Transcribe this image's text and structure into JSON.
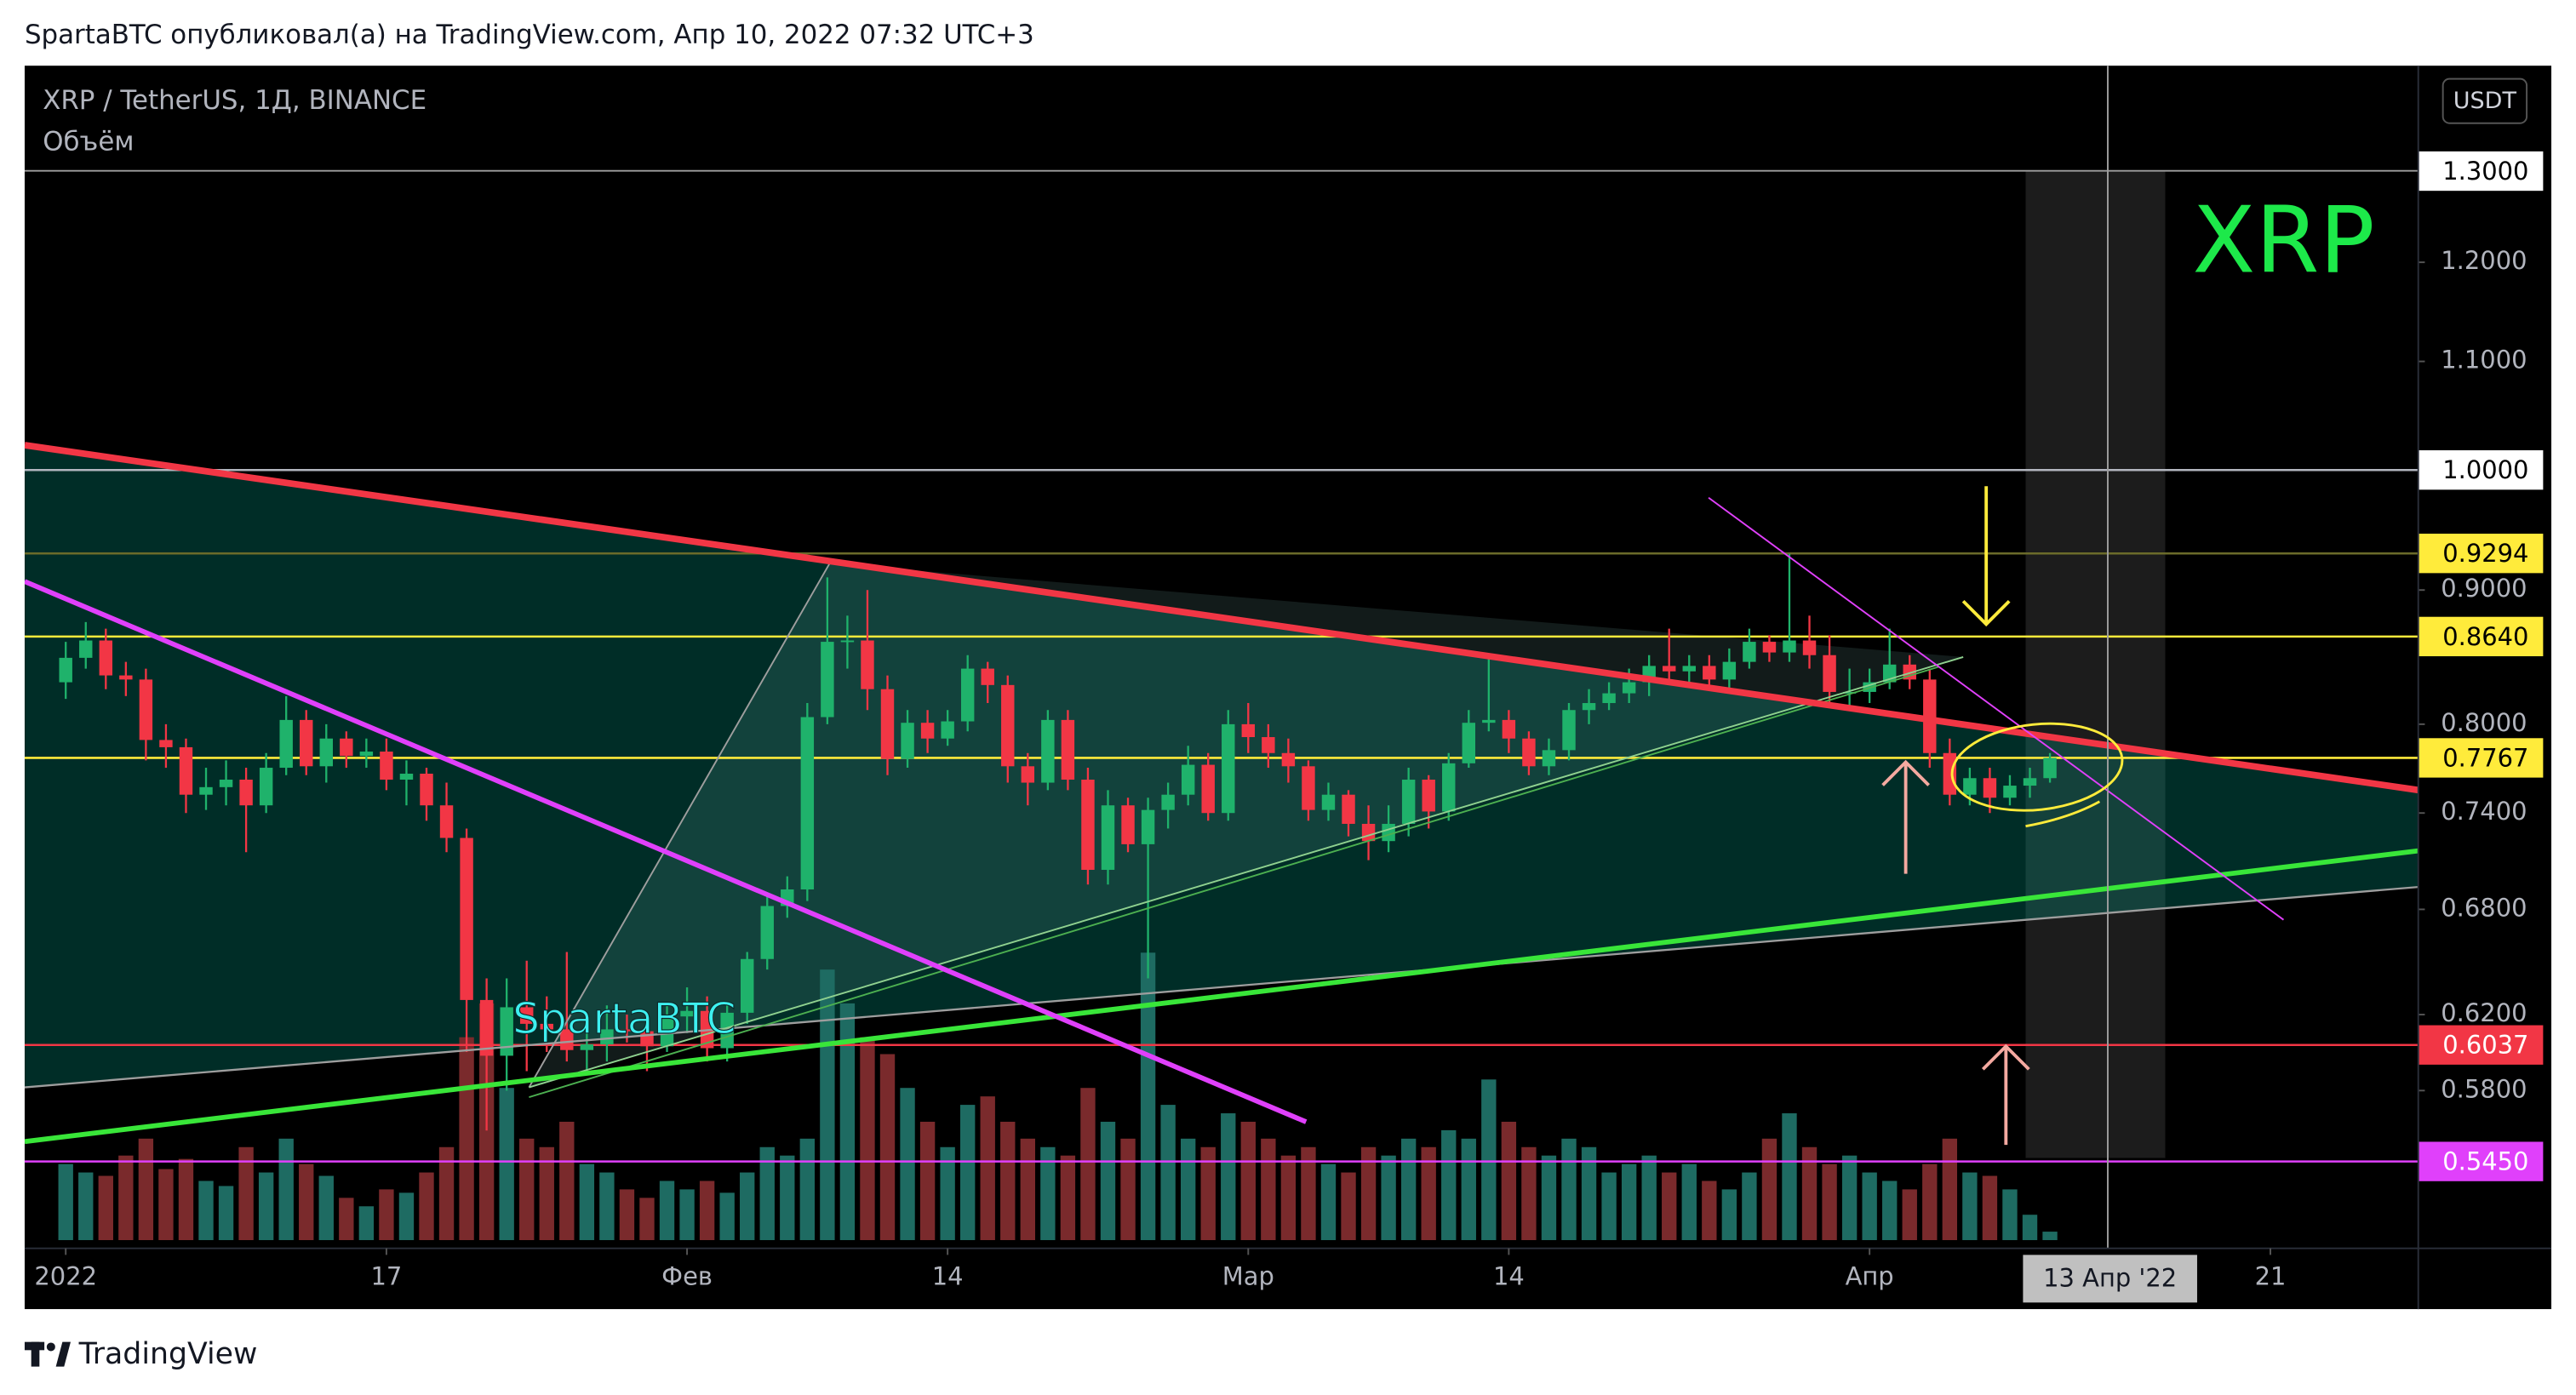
{
  "header": {
    "text": "SpartaBTC опубликовал(а) на TradingView.com, Апр 10, 2022 07:32 UTC+3"
  },
  "footer": {
    "brand": "TradingView"
  },
  "chart_data": {
    "type": "candlestick",
    "symbol": "XRP / TetherUS, 1Д, BINANCE",
    "volume_label": "Объём",
    "currency": "USDT",
    "log_scale": true,
    "ylim": [
      0.505,
      1.426
    ],
    "up_color": "#1fb26b",
    "down_color": "#f23645",
    "volume_up_color": "#1e6b62",
    "volume_down_color": "#7a2a2c",
    "x": [
      "2022-01-01",
      "2022-01-02",
      "2022-01-03",
      "2022-01-04",
      "2022-01-05",
      "2022-01-06",
      "2022-01-07",
      "2022-01-08",
      "2022-01-09",
      "2022-01-10",
      "2022-01-11",
      "2022-01-12",
      "2022-01-13",
      "2022-01-14",
      "2022-01-15",
      "2022-01-16",
      "2022-01-17",
      "2022-01-18",
      "2022-01-19",
      "2022-01-20",
      "2022-01-21",
      "2022-01-22",
      "2022-01-23",
      "2022-01-24",
      "2022-01-25",
      "2022-01-26",
      "2022-01-27",
      "2022-01-28",
      "2022-01-29",
      "2022-01-30",
      "2022-01-31",
      "2022-02-01",
      "2022-02-02",
      "2022-02-03",
      "2022-02-04",
      "2022-02-05",
      "2022-02-06",
      "2022-02-07",
      "2022-02-08",
      "2022-02-09",
      "2022-02-10",
      "2022-02-11",
      "2022-02-12",
      "2022-02-13",
      "2022-02-14",
      "2022-02-15",
      "2022-02-16",
      "2022-02-17",
      "2022-02-18",
      "2022-02-19",
      "2022-02-20",
      "2022-02-21",
      "2022-02-22",
      "2022-02-23",
      "2022-02-24",
      "2022-02-25",
      "2022-02-26",
      "2022-02-27",
      "2022-02-28",
      "2022-03-01",
      "2022-03-02",
      "2022-03-03",
      "2022-03-04",
      "2022-03-05",
      "2022-03-06",
      "2022-03-07",
      "2022-03-08",
      "2022-03-09",
      "2022-03-10",
      "2022-03-11",
      "2022-03-12",
      "2022-03-13",
      "2022-03-14",
      "2022-03-15",
      "2022-03-16",
      "2022-03-17",
      "2022-03-18",
      "2022-03-19",
      "2022-03-20",
      "2022-03-21",
      "2022-03-22",
      "2022-03-23",
      "2022-03-24",
      "2022-03-25",
      "2022-03-26",
      "2022-03-27",
      "2022-03-28",
      "2022-03-29",
      "2022-03-30",
      "2022-03-31",
      "2022-04-01",
      "2022-04-02",
      "2022-04-03",
      "2022-04-04",
      "2022-04-05",
      "2022-04-06",
      "2022-04-07",
      "2022-04-08",
      "2022-04-09",
      "2022-04-10"
    ],
    "open": [
      0.83,
      0.848,
      0.861,
      0.835,
      0.832,
      0.789,
      0.784,
      0.752,
      0.757,
      0.762,
      0.745,
      0.77,
      0.803,
      0.771,
      0.79,
      0.778,
      0.781,
      0.762,
      0.766,
      0.745,
      0.724,
      0.628,
      0.598,
      0.624,
      0.615,
      0.612,
      0.601,
      0.604,
      0.612,
      0.611,
      0.603,
      0.619,
      0.622,
      0.602,
      0.621,
      0.651,
      0.682,
      0.692,
      0.805,
      0.86,
      0.861,
      0.825,
      0.776,
      0.801,
      0.79,
      0.802,
      0.84,
      0.828,
      0.771,
      0.76,
      0.803,
      0.762,
      0.704,
      0.745,
      0.72,
      0.742,
      0.752,
      0.772,
      0.74,
      0.8,
      0.791,
      0.78,
      0.771,
      0.742,
      0.752,
      0.733,
      0.722,
      0.733,
      0.762,
      0.741,
      0.773,
      0.801,
      0.803,
      0.79,
      0.771,
      0.782,
      0.81,
      0.815,
      0.822,
      0.83,
      0.842,
      0.838,
      0.842,
      0.832,
      0.845,
      0.86,
      0.852,
      0.861,
      0.85,
      0.823,
      0.823,
      0.83,
      0.843,
      0.832,
      0.78,
      0.752,
      0.763,
      0.75,
      0.758,
      0.763
    ],
    "high": [
      0.86,
      0.875,
      0.87,
      0.845,
      0.84,
      0.8,
      0.79,
      0.77,
      0.775,
      0.77,
      0.78,
      0.82,
      0.81,
      0.8,
      0.795,
      0.79,
      0.79,
      0.775,
      0.77,
      0.76,
      0.73,
      0.64,
      0.64,
      0.65,
      0.63,
      0.655,
      0.62,
      0.625,
      0.62,
      0.62,
      0.625,
      0.635,
      0.63,
      0.625,
      0.655,
      0.69,
      0.7,
      0.815,
      0.91,
      0.88,
      0.9,
      0.835,
      0.81,
      0.81,
      0.81,
      0.85,
      0.845,
      0.835,
      0.78,
      0.81,
      0.81,
      0.77,
      0.755,
      0.75,
      0.75,
      0.76,
      0.785,
      0.78,
      0.81,
      0.815,
      0.8,
      0.79,
      0.775,
      0.76,
      0.755,
      0.745,
      0.745,
      0.77,
      0.765,
      0.78,
      0.81,
      0.85,
      0.81,
      0.795,
      0.79,
      0.815,
      0.825,
      0.83,
      0.84,
      0.85,
      0.87,
      0.85,
      0.85,
      0.855,
      0.87,
      0.865,
      0.929,
      0.88,
      0.865,
      0.84,
      0.84,
      0.87,
      0.85,
      0.84,
      0.79,
      0.77,
      0.77,
      0.765,
      0.77,
      0.78
    ],
    "low": [
      0.818,
      0.84,
      0.825,
      0.82,
      0.775,
      0.77,
      0.74,
      0.742,
      0.745,
      0.715,
      0.74,
      0.765,
      0.765,
      0.76,
      0.77,
      0.77,
      0.755,
      0.745,
      0.735,
      0.715,
      0.6,
      0.56,
      0.58,
      0.59,
      0.6,
      0.595,
      0.59,
      0.595,
      0.605,
      0.59,
      0.6,
      0.61,
      0.595,
      0.595,
      0.615,
      0.645,
      0.675,
      0.685,
      0.8,
      0.84,
      0.81,
      0.765,
      0.77,
      0.78,
      0.785,
      0.795,
      0.815,
      0.76,
      0.745,
      0.755,
      0.755,
      0.695,
      0.695,
      0.715,
      0.64,
      0.73,
      0.745,
      0.735,
      0.735,
      0.78,
      0.77,
      0.76,
      0.735,
      0.735,
      0.725,
      0.71,
      0.715,
      0.725,
      0.73,
      0.735,
      0.77,
      0.795,
      0.78,
      0.765,
      0.765,
      0.775,
      0.8,
      0.81,
      0.815,
      0.82,
      0.83,
      0.83,
      0.825,
      0.825,
      0.84,
      0.845,
      0.845,
      0.84,
      0.815,
      0.81,
      0.815,
      0.825,
      0.825,
      0.77,
      0.745,
      0.745,
      0.74,
      0.745,
      0.75,
      0.76
    ],
    "close": [
      0.848,
      0.861,
      0.835,
      0.832,
      0.789,
      0.784,
      0.752,
      0.757,
      0.762,
      0.745,
      0.77,
      0.803,
      0.771,
      0.79,
      0.778,
      0.781,
      0.762,
      0.766,
      0.745,
      0.724,
      0.628,
      0.598,
      0.624,
      0.615,
      0.612,
      0.601,
      0.604,
      0.612,
      0.611,
      0.603,
      0.619,
      0.622,
      0.602,
      0.621,
      0.651,
      0.682,
      0.692,
      0.805,
      0.86,
      0.861,
      0.825,
      0.776,
      0.801,
      0.79,
      0.802,
      0.84,
      0.828,
      0.771,
      0.76,
      0.803,
      0.762,
      0.704,
      0.745,
      0.72,
      0.742,
      0.752,
      0.772,
      0.74,
      0.8,
      0.791,
      0.78,
      0.771,
      0.742,
      0.752,
      0.733,
      0.722,
      0.733,
      0.762,
      0.741,
      0.773,
      0.801,
      0.803,
      0.79,
      0.771,
      0.782,
      0.81,
      0.815,
      0.822,
      0.83,
      0.842,
      0.838,
      0.842,
      0.832,
      0.845,
      0.86,
      0.852,
      0.861,
      0.85,
      0.823,
      0.823,
      0.83,
      0.843,
      0.832,
      0.78,
      0.752,
      0.763,
      0.75,
      0.758,
      0.763,
      0.7767
    ],
    "volume": [
      45,
      40,
      38,
      50,
      60,
      42,
      48,
      35,
      32,
      55,
      40,
      60,
      45,
      38,
      25,
      20,
      30,
      28,
      40,
      55,
      120,
      140,
      90,
      60,
      55,
      70,
      45,
      40,
      30,
      25,
      35,
      30,
      35,
      28,
      40,
      55,
      50,
      60,
      160,
      140,
      120,
      110,
      90,
      70,
      55,
      80,
      85,
      70,
      60,
      55,
      50,
      90,
      70,
      60,
      170,
      80,
      60,
      55,
      75,
      70,
      60,
      50,
      55,
      45,
      40,
      55,
      50,
      60,
      55,
      65,
      60,
      95,
      70,
      55,
      50,
      60,
      55,
      40,
      45,
      50,
      40,
      45,
      35,
      30,
      40,
      60,
      75,
      55,
      45,
      50,
      40,
      35,
      30,
      45,
      60,
      40,
      38,
      30,
      15,
      5
    ],
    "yticks": [
      {
        "value": 1.2,
        "label": "1.2000"
      },
      {
        "value": 1.1,
        "label": "1.1000"
      },
      {
        "value": 0.9,
        "label": "0.9000"
      },
      {
        "value": 0.8,
        "label": "0.8000"
      },
      {
        "value": 0.74,
        "label": "0.7400"
      },
      {
        "value": 0.68,
        "label": "0.6800"
      },
      {
        "value": 0.62,
        "label": "0.6200"
      },
      {
        "value": 0.58,
        "label": "0.5800"
      }
    ],
    "xticks": [
      {
        "value": "2022-01-01",
        "label": "2022"
      },
      {
        "value": "2022-01-17",
        "label": "17"
      },
      {
        "value": "2022-02-01",
        "label": "Фев"
      },
      {
        "value": "2022-02-14",
        "label": "14"
      },
      {
        "value": "2022-03-01",
        "label": "Мар"
      },
      {
        "value": "2022-03-14",
        "label": "14"
      },
      {
        "value": "2022-04-01",
        "label": "Апр"
      },
      {
        "value": "2022-04-21",
        "label": "21"
      }
    ],
    "levels": [
      {
        "value": 1.0,
        "label": "1.0000",
        "color": "#b2b5be",
        "box": "#ffffff",
        "text": "#000000"
      },
      {
        "value": 0.9294,
        "label": "0.9294",
        "color": "#6b6b2a",
        "box": "#ffeb3b",
        "text": "#000000"
      },
      {
        "value": 0.864,
        "label": "0.8640",
        "color": "#ffeb3b",
        "box": "#ffeb3b",
        "text": "#000000"
      },
      {
        "value": 0.7767,
        "label": "0.7767",
        "color": "#ffeb3b",
        "box": "#ffeb3b",
        "text": "#000000"
      },
      {
        "value": 0.6037,
        "label": "0.6037",
        "color": "#f23645",
        "box": "#f23645",
        "text": "#ffffff"
      },
      {
        "value": 0.545,
        "label": "0.5450",
        "color": "#e040fb",
        "box": "#e040fb",
        "text": "#ffffff"
      }
    ],
    "crosshair": {
      "x": {
        "value": "2022-04-13",
        "label": "13 Апр '22"
      },
      "y": {
        "value": 1.3,
        "label": "1.3000"
      }
    },
    "annotations": {
      "ticker": "XRP",
      "author": "SpartaBTC"
    }
  }
}
